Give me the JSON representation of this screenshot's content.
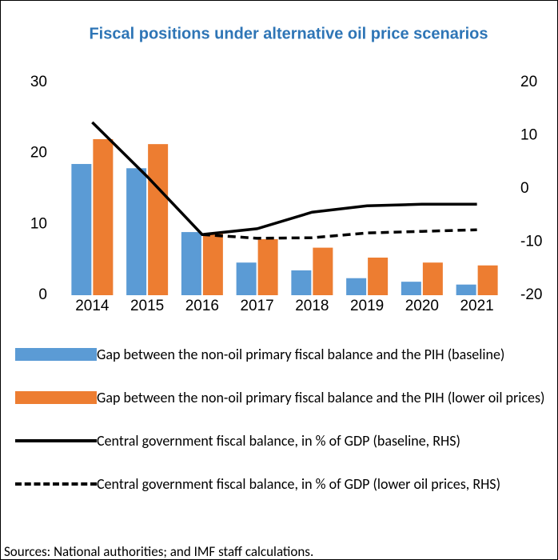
{
  "chart_data": {
    "type": "bar",
    "title": "Fiscal positions under alternative oil price scenarios",
    "categories": [
      "2014",
      "2015",
      "2016",
      "2017",
      "2018",
      "2019",
      "2020",
      "2021"
    ],
    "series": [
      {
        "name": "Gap between the non-oil primary fiscal balance and the PIH (baseline)",
        "type": "bar",
        "color": "#5b9bd5",
        "values": [
          18.5,
          17.9,
          8.9,
          4.6,
          3.5,
          2.4,
          1.9,
          1.5
        ]
      },
      {
        "name": "Gap between the non-oil primary fiscal balance and the PIH (lower oil prices)",
        "type": "bar",
        "color": "#ed7d31",
        "values": [
          22.0,
          21.3,
          8.7,
          7.9,
          6.7,
          5.3,
          4.6,
          4.2
        ]
      },
      {
        "name": "Central government fiscal balance, in % of GDP (baseline, RHS)",
        "type": "line",
        "axis": "y2",
        "color": "#000000",
        "dash": false,
        "values": [
          12.5,
          2.3,
          -8.6,
          -7.5,
          -4.4,
          -3.2,
          -2.9,
          -2.9
        ]
      },
      {
        "name": "Central government fiscal balance, in % of GDP (lower oil prices, RHS)",
        "type": "line",
        "axis": "y2",
        "color": "#000000",
        "dash": true,
        "values": [
          null,
          null,
          -8.6,
          -9.3,
          -9.2,
          -8.3,
          -8.0,
          -7.7
        ]
      }
    ],
    "ylim": [
      0,
      30
    ],
    "yticks": [
      0,
      10,
      20,
      30
    ],
    "y2lim": [
      -20,
      20
    ],
    "y2ticks": [
      -20,
      -10,
      0,
      10,
      20
    ],
    "grid": false,
    "source": "Sources: National authorities; and IMF staff calculations."
  }
}
